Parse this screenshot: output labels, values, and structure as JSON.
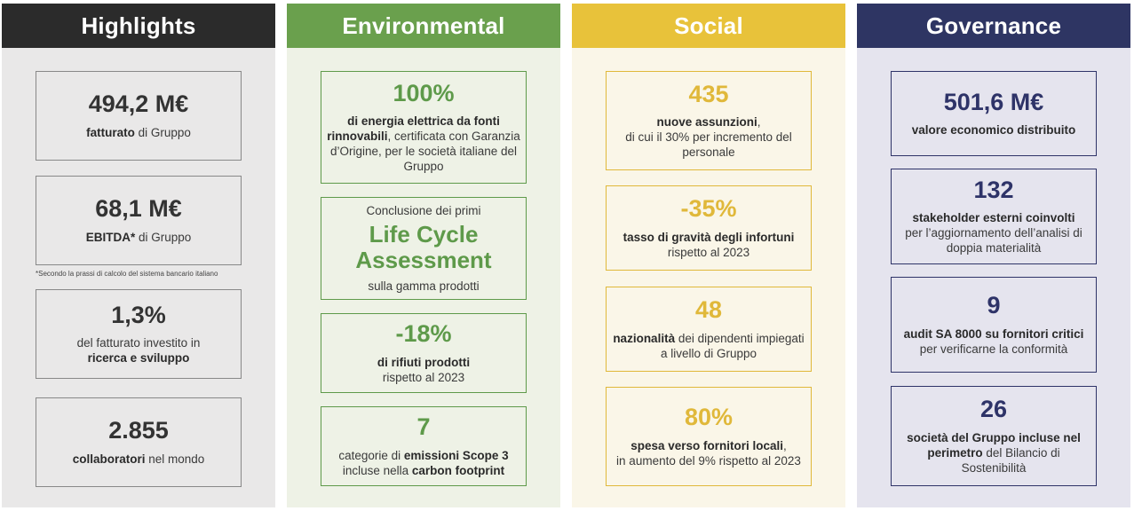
{
  "columns": {
    "highlights": {
      "title": "Highlights",
      "header_color": "#2b2b2b",
      "bg_color": "#e9e8e8",
      "metric_color": "#333333",
      "cards": [
        {
          "metric": "494,2 M€",
          "b1": "fatturato",
          "t1": " di Gruppo"
        },
        {
          "metric": "68,1 M€",
          "b1": "EBITDA*",
          "t1": " di Gruppo"
        },
        {
          "metric": "1,3%",
          "t1": "del fatturato investito in",
          "b1": "ricerca e sviluppo"
        },
        {
          "metric": "2.855",
          "b1": "collaboratori",
          "t1": " nel mondo"
        }
      ],
      "footnote": "*Secondo la prassi di calcolo del sistema bancario italiano"
    },
    "environmental": {
      "title": "Environmental",
      "header_color": "#6aa04d",
      "bg_color": "#eef2e6",
      "metric_color": "#5e9a4a",
      "cards": [
        {
          "metric": "100%",
          "b1": "di energia elettrica da fonti rinnovabili",
          "t1": ", certificata con Garanzia d’Origine, per le società italiane del Gruppo"
        },
        {
          "pre": "Conclusione dei primi",
          "big1": "Life Cycle",
          "big2": "Assessment",
          "post": "sulla gamma prodotti"
        },
        {
          "metric": "-18%",
          "b1": "di rifiuti prodotti",
          "t1": "rispetto al 2023"
        },
        {
          "metric": "7",
          "t1": "categorie di ",
          "b1": "emissioni Scope 3",
          "t2": "incluse nella ",
          "b2": "carbon footprint"
        }
      ]
    },
    "social": {
      "title": "Social",
      "header_color": "#e8c23a",
      "bg_color": "#faf6e8",
      "metric_color": "#e0b83a",
      "cards": [
        {
          "metric": "435",
          "b1": "nuove assunzioni",
          "t1": ",",
          "t2": "di cui il 30% per incremento del personale"
        },
        {
          "metric": "-35%",
          "b1": "tasso di gravità degli infortuni",
          "t1": " rispetto al 2023"
        },
        {
          "metric": "48",
          "b1": "nazionalità",
          "t1": " dei dipendenti impiegati a livello di Gruppo"
        },
        {
          "metric": "80%",
          "b1": "spesa verso fornitori locali",
          "t1": ",",
          "t2": "in aumento del 9% rispetto al 2023"
        }
      ]
    },
    "governance": {
      "title": "Governance",
      "header_color": "#2e3563",
      "bg_color": "#e5e4ee",
      "metric_color": "#2e3368",
      "cards": [
        {
          "metric": "501,6 M€",
          "b1": "valore economico distribuito"
        },
        {
          "metric": "132",
          "b1": "stakeholder esterni coinvolti",
          "t1": "per l’aggiornamento dell’analisi di doppia materialità"
        },
        {
          "metric": "9",
          "b1": "audit SA 8000 su fornitori critici",
          "t1": " per verificarne la conformità"
        },
        {
          "metric": "26",
          "b1": "società del Gruppo incluse nel perimetro",
          "t1": " del Bilancio di Sostenibilità"
        }
      ]
    }
  }
}
